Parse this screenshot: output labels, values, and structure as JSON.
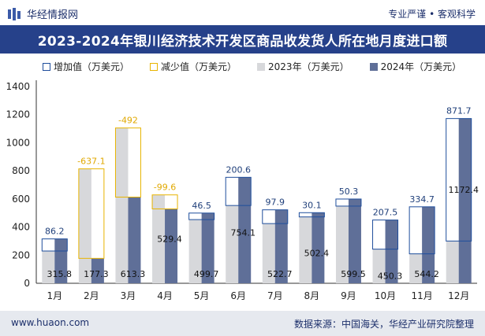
{
  "header": {
    "brand": "华经情报网",
    "slogan": "专业严谨 • 客观科学"
  },
  "footer": {
    "website": "www.huaon.com",
    "source": "数据来源：中国海关，华经产业研究院整理"
  },
  "colors": {
    "title_bg": "#26418a",
    "increase": "#1f4e9c",
    "decrease": "#e8b400",
    "y2023": "#d7d8db",
    "y2024": "#5f6f98",
    "decrease_label": "#e0a800",
    "increase_label": "#1f3f7a"
  },
  "chart_data": {
    "type": "bar",
    "title": "2023-2024年银川经济技术开发区商品收发货人所在地月度进口额",
    "legend": [
      "增加值（万美元）",
      "减少值（万美元）",
      "2023年（万美元）",
      "2024年（万美元）"
    ],
    "categories": [
      "1月",
      "2月",
      "3月",
      "4月",
      "5月",
      "6月",
      "7月",
      "8月",
      "9月",
      "10月",
      "11月",
      "12月"
    ],
    "series": [
      {
        "name": "2023年（万美元）",
        "values": [
          229.6,
          814.4,
          1105.3,
          629.0,
          453.2,
          553.5,
          424.8,
          472.3,
          549.2,
          242.8,
          209.5,
          300.7
        ]
      },
      {
        "name": "2024年（万美元）",
        "values": [
          315.8,
          177.3,
          613.3,
          529.4,
          499.7,
          754.1,
          522.7,
          502.4,
          599.5,
          450.3,
          544.2,
          1172.4
        ]
      }
    ],
    "change": [
      86.2,
      -637.1,
      -492,
      -99.6,
      46.5,
      200.6,
      97.9,
      30.1,
      50.3,
      207.5,
      334.7,
      871.7
    ],
    "change_labels": [
      "86.2",
      "-637.1",
      "-492",
      "-99.6",
      "46.5",
      "200.6",
      "97.9",
      "30.1",
      "50.3",
      "207.5",
      "334.7",
      "871.7"
    ],
    "value_labels_2024": [
      "315.8",
      "177.3",
      "613.3",
      "529.4",
      "499.7",
      "754.1",
      "522.7",
      "502.4",
      "599.5",
      "450.3",
      "544.2",
      "1172.4"
    ],
    "ylim": [
      0,
      1400
    ],
    "yticks": [
      0,
      200,
      400,
      600,
      800,
      1000,
      1200,
      1400
    ]
  }
}
